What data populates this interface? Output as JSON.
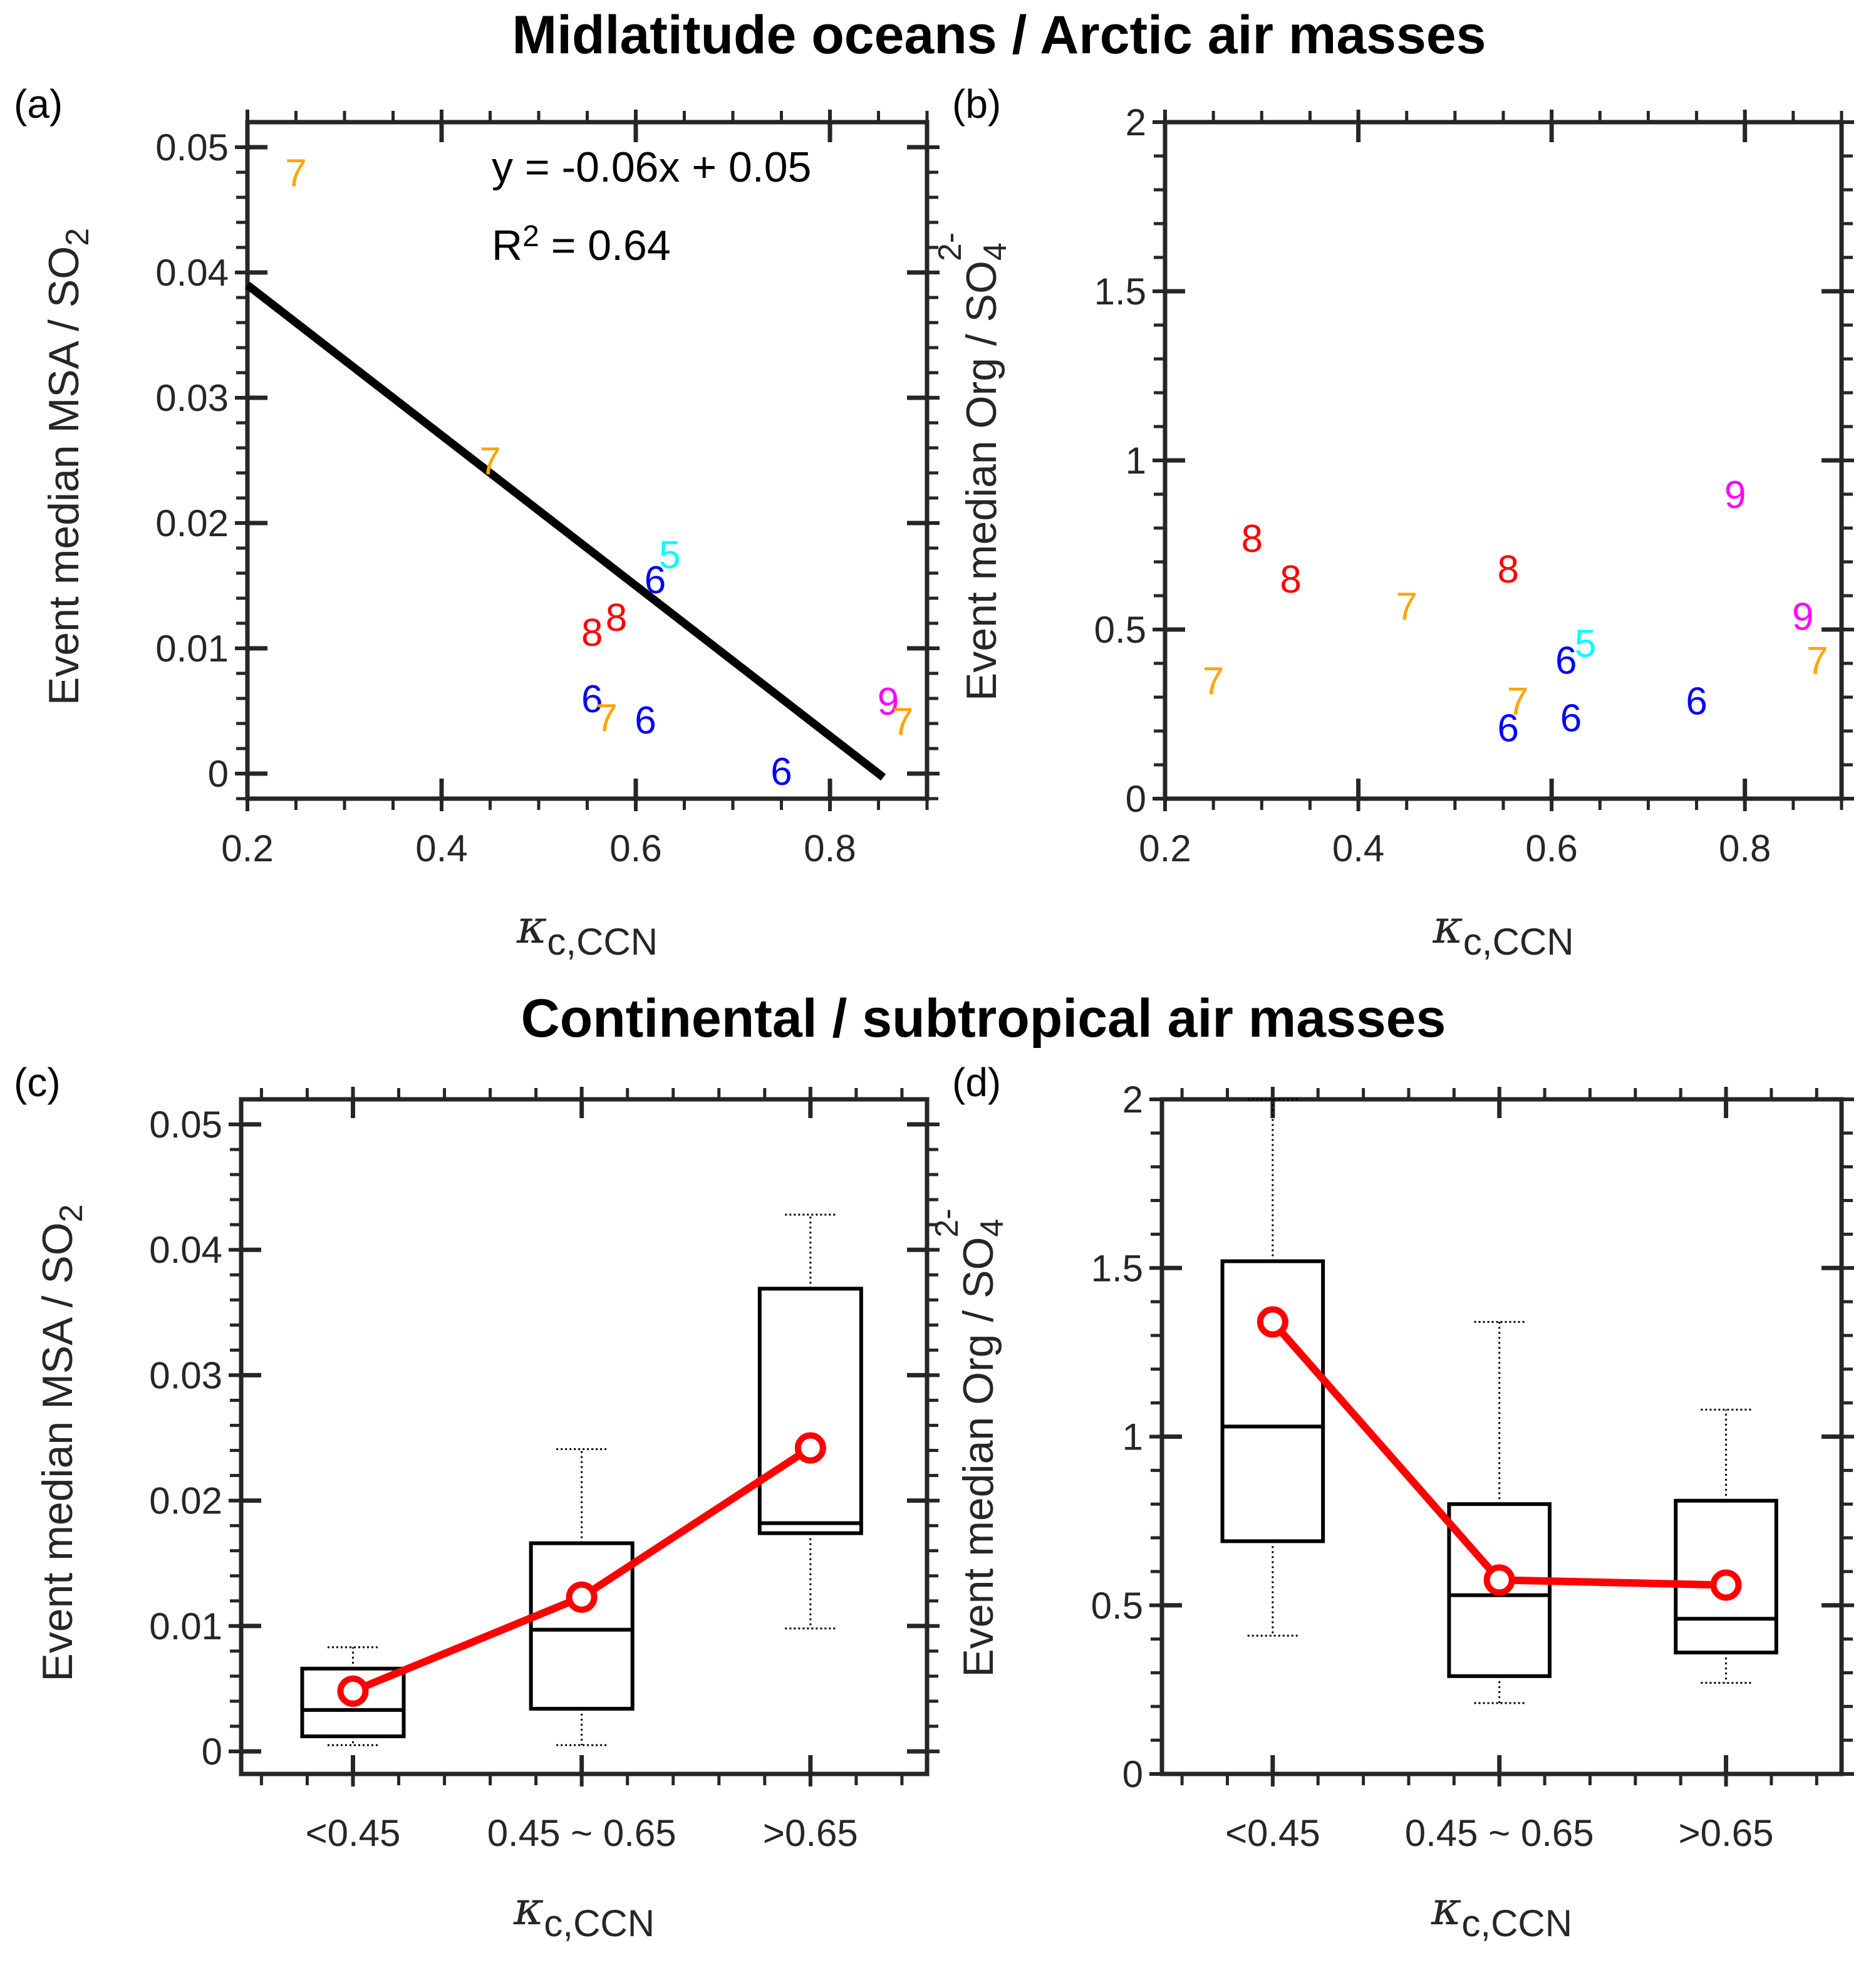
{
  "titles": {
    "top": "Midlatitude oceans /  Arctic air masses",
    "bottom": "Continental / subtropical air masses"
  },
  "colors": {
    "5": "#00ffff",
    "6": "#0000ff",
    "7": "#ffa500",
    "8": "#ff0000",
    "9": "#ff00ff",
    "median_line": "#ff0000",
    "fit_line": "#000000"
  },
  "chart_data": [
    {
      "panel": "(a)",
      "type": "scatter",
      "xlabel": "κ",
      "xlabel_sub": "c,CCN",
      "ylabel": "Event median MSA / SO",
      "ylabel_sub": "2",
      "xlim": [
        0.2,
        0.9
      ],
      "ylim": [
        -0.002,
        0.052
      ],
      "xticks": [
        "0.2",
        "0.4",
        "0.6",
        "0.8"
      ],
      "yticks": [
        "0",
        "0.01",
        "0.02",
        "0.03",
        "0.04",
        "0.05"
      ],
      "points": [
        {
          "x": 0.25,
          "y": 0.048,
          "label": "7"
        },
        {
          "x": 0.45,
          "y": 0.025,
          "label": "7"
        },
        {
          "x": 0.635,
          "y": 0.0175,
          "label": "5"
        },
        {
          "x": 0.62,
          "y": 0.0155,
          "label": "6"
        },
        {
          "x": 0.58,
          "y": 0.0125,
          "label": "8"
        },
        {
          "x": 0.555,
          "y": 0.0113,
          "label": "8"
        },
        {
          "x": 0.555,
          "y": 0.006,
          "label": "6"
        },
        {
          "x": 0.57,
          "y": 0.0045,
          "label": "7"
        },
        {
          "x": 0.61,
          "y": 0.0043,
          "label": "6"
        },
        {
          "x": 0.75,
          "y": 0.0002,
          "label": "6"
        },
        {
          "x": 0.86,
          "y": 0.0058,
          "label": "9"
        },
        {
          "x": 0.875,
          "y": 0.0042,
          "label": "7"
        }
      ],
      "fit": {
        "slope": -0.06,
        "intercept": 0.051,
        "x_range": [
          0.2,
          0.855
        ]
      },
      "annotations": [
        "y = -0.06x + 0.05",
        "R",
        "2",
        " = 0.64"
      ]
    },
    {
      "panel": "(b)",
      "type": "scatter",
      "xlabel": "κ",
      "xlabel_sub": "c,CCN",
      "ylabel": "Event median Org / SO",
      "ylabel_sub": "4",
      "ylabel_sup": "2-",
      "xlim": [
        0.2,
        0.9
      ],
      "ylim": [
        0,
        2
      ],
      "xticks": [
        "0.2",
        "0.4",
        "0.6",
        "0.8"
      ],
      "yticks": [
        "0",
        "0.5",
        "1",
        "1.5",
        "2"
      ],
      "points": [
        {
          "x": 0.29,
          "y": 0.77,
          "label": "8"
        },
        {
          "x": 0.33,
          "y": 0.65,
          "label": "8"
        },
        {
          "x": 0.555,
          "y": 0.68,
          "label": "8"
        },
        {
          "x": 0.45,
          "y": 0.57,
          "label": "7"
        },
        {
          "x": 0.25,
          "y": 0.35,
          "label": "7"
        },
        {
          "x": 0.565,
          "y": 0.29,
          "label": "7"
        },
        {
          "x": 0.875,
          "y": 0.41,
          "label": "7"
        },
        {
          "x": 0.79,
          "y": 0.9,
          "label": "9"
        },
        {
          "x": 0.86,
          "y": 0.54,
          "label": "9"
        },
        {
          "x": 0.635,
          "y": 0.46,
          "label": "5"
        },
        {
          "x": 0.615,
          "y": 0.41,
          "label": "6"
        },
        {
          "x": 0.555,
          "y": 0.21,
          "label": "6"
        },
        {
          "x": 0.62,
          "y": 0.24,
          "label": "6"
        },
        {
          "x": 0.75,
          "y": 0.29,
          "label": "6"
        }
      ]
    },
    {
      "panel": "(c)",
      "type": "box",
      "xlabel": "κ",
      "xlabel_sub": "c,CCN",
      "ylabel": "Event median MSA / SO",
      "ylabel_sub": "2",
      "categories": [
        "<0.45",
        "0.45 ~ 0.65",
        ">0.65"
      ],
      "ylim": [
        -0.0018,
        0.052
      ],
      "yticks": [
        "0",
        "0.01",
        "0.02",
        "0.03",
        "0.04",
        "0.05"
      ],
      "boxes": [
        {
          "min": 0.0005,
          "q1": 0.0012,
          "median": 0.0033,
          "q3": 0.0066,
          "max": 0.0083
        },
        {
          "min": 0.0005,
          "q1": 0.0034,
          "median": 0.0097,
          "q3": 0.0166,
          "max": 0.0241
        },
        {
          "min": 0.0098,
          "q1": 0.0174,
          "median": 0.0182,
          "q3": 0.0369,
          "max": 0.0428
        }
      ],
      "line_values": [
        0.0048,
        0.0123,
        0.0242
      ]
    },
    {
      "panel": "(d)",
      "type": "box",
      "xlabel": "κ",
      "xlabel_sub": "c,CCN",
      "ylabel": "Event median Org / SO",
      "ylabel_sub": "4",
      "ylabel_sup": "2-",
      "categories": [
        "<0.45",
        "0.45 ~ 0.65",
        ">0.65"
      ],
      "ylim": [
        0,
        2
      ],
      "yticks": [
        "0",
        "0.5",
        "1",
        "1.5",
        "2"
      ],
      "boxes": [
        {
          "min": 0.41,
          "q1": 0.69,
          "median": 1.03,
          "q3": 1.52,
          "max": 2.0
        },
        {
          "min": 0.21,
          "q1": 0.29,
          "median": 0.53,
          "q3": 0.8,
          "max": 1.34
        },
        {
          "min": 0.27,
          "q1": 0.36,
          "median": 0.46,
          "q3": 0.81,
          "max": 1.08
        }
      ],
      "line_values": [
        1.34,
        0.575,
        0.56
      ]
    }
  ]
}
